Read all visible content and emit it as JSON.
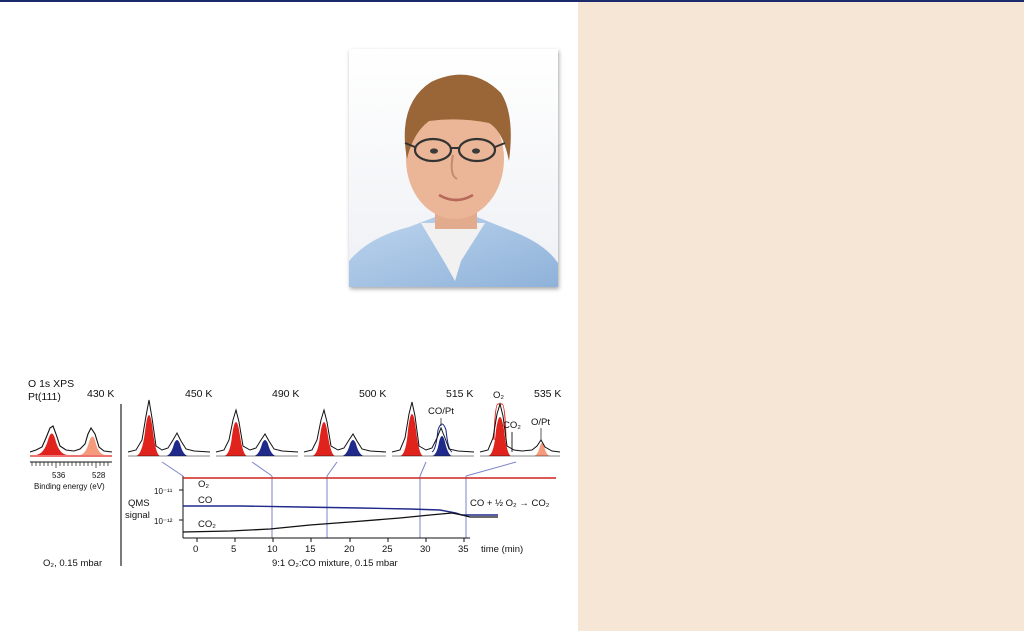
{
  "colors": {
    "page": "#ffffff",
    "top_rule": "#1a2a6c",
    "side_panel": "#f6e6d6",
    "o2_peak": "#e0231c",
    "o2_peak_light": "#f59a7a",
    "co_peak": "#1f2a8a",
    "o2_trace": "#d0241c",
    "co_trace": "#1f2a8a",
    "co2_trace": "#111111",
    "connector": "#7b84c8"
  },
  "photo": {
    "icon": "portrait-photo"
  },
  "figure": {
    "panel_title_line1": "O 1s XPS",
    "panel_title_line2": "Pt(111)",
    "temperatures": [
      "430 K",
      "450 K",
      "490 K",
      "500 K",
      "515 K",
      "535 K"
    ],
    "inset_x_ticks": [
      "536",
      "528"
    ],
    "inset_x_label": "Binding energy (eV)",
    "left_condition": "O₂, 0.15 mbar",
    "peak_labels": {
      "o2": "O₂",
      "co_pt": "CO/Pt",
      "co2": "CO₂",
      "o_pt": "O/Pt"
    },
    "qms": {
      "ylabel_line1": "QMS",
      "ylabel_line2": "signal",
      "y_ticks": [
        "10⁻¹¹",
        "10⁻¹²"
      ],
      "traces": [
        "O₂",
        "CO",
        "CO₂"
      ],
      "x_ticks": [
        "0",
        "5",
        "10",
        "15",
        "20",
        "25",
        "30",
        "35"
      ],
      "x_label": "time (min)",
      "reaction": "CO + ½ O₂ → CO₂",
      "mixture": "9:1 O₂:CO mixture, 0.15 mbar"
    }
  }
}
